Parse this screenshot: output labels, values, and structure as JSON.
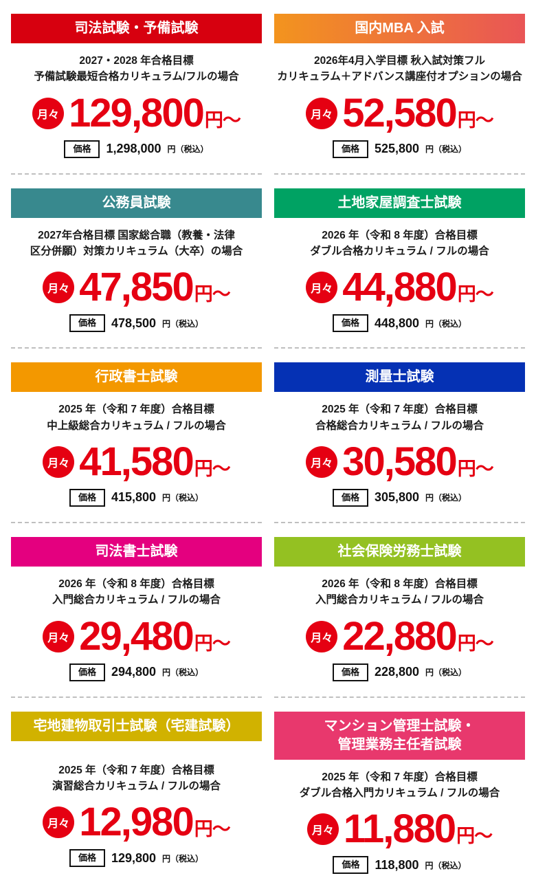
{
  "labels": {
    "monthly_badge": "月々",
    "yen_from": "円〜",
    "price_label": "価格",
    "yen_tax": "円（税込）"
  },
  "colors": {
    "price_red": "#e50012",
    "separator_gray": "#bfbfbf"
  },
  "cards": [
    {
      "title": "司法試験・予備試験",
      "header_bg": "#d7000f",
      "desc1": "2027・2028 年合格目標",
      "desc2": "予備試験最短合格カリキュラム/フルの場合",
      "monthly_price": "129,800",
      "total_price": "1,298,000"
    },
    {
      "title": "国内MBA 入試",
      "header_bg": "linear-gradient(90deg, #f3941e, #e95556)",
      "desc1": "2026年4月入学目標 秋入試対策フル",
      "desc2": "カリキュラム＋アドバンス講座付オプションの場合",
      "monthly_price": "52,580",
      "total_price": "525,800"
    },
    {
      "title": "公務員試験",
      "header_bg": "#38898e",
      "desc1": "2027年合格目標 国家総合職（教養・法律",
      "desc2": "区分併願）対策カリキュラム（大卒）の場合",
      "monthly_price": "47,850",
      "total_price": "478,500"
    },
    {
      "title": "土地家屋調査士試験",
      "header_bg": "#00a263",
      "desc1": "2026 年（令和 8 年度）合格目標",
      "desc2": "ダブル合格カリキュラム / フルの場合",
      "monthly_price": "44,880",
      "total_price": "448,800"
    },
    {
      "title": "行政書士試験",
      "header_bg": "#f39800",
      "desc1": "2025 年（令和 7 年度）合格目標",
      "desc2": "中上級総合カリキュラム / フルの場合",
      "monthly_price": "41,580",
      "total_price": "415,800"
    },
    {
      "title": "測量士試験",
      "header_bg": "#0531b4",
      "desc1": "2025 年（令和 7 年度）合格目標",
      "desc2": "合格総合カリキュラム / フルの場合",
      "monthly_price": "30,580",
      "total_price": "305,800"
    },
    {
      "title": "司法書士試験",
      "header_bg": "#e4007f",
      "desc1": "2026 年（令和 8 年度）合格目標",
      "desc2": "入門総合カリキュラム / フルの場合",
      "monthly_price": "29,480",
      "total_price": "294,800"
    },
    {
      "title": "社会保険労務士試験",
      "header_bg": "#94c122",
      "desc1": "2026 年（令和 8 年度）合格目標",
      "desc2": "入門総合カリキュラム / フルの場合",
      "monthly_price": "22,880",
      "total_price": "228,800"
    },
    {
      "title": "宅地建物取引士試験（宅建試験）",
      "header_bg": "#d1b200",
      "desc1": "2025 年（令和 7 年度）合格目標",
      "desc2": "演習総合カリキュラム / フルの場合",
      "monthly_price": "12,980",
      "total_price": "129,800"
    },
    {
      "title": "マンション管理士試験・",
      "title2": "管理業務主任者試験",
      "header_bg": "#e8386d",
      "desc1": "2025 年（令和 7 年度）合格目標",
      "desc2": "ダブル合格入門カリキュラム / フルの場合",
      "monthly_price": "11,880",
      "total_price": "118,800"
    }
  ]
}
